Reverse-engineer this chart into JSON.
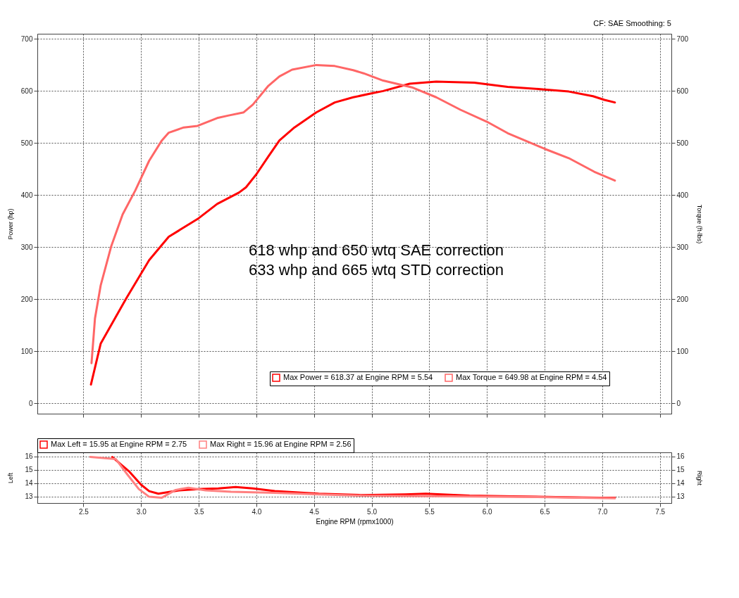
{
  "chart_data": [
    {
      "type": "line",
      "ylabel": "Power (hp)",
      "y2label": "Torque (ft-lbs)",
      "xlim": [
        2.1,
        7.6
      ],
      "ylim": [
        -20,
        710
      ],
      "y2lim": [
        -20,
        710
      ],
      "xticks": [
        2.5,
        3,
        3.5,
        4,
        4.5,
        5,
        5.5,
        6,
        6.5,
        7,
        7.5
      ],
      "yticks": [
        0,
        100,
        200,
        300,
        400,
        500,
        600,
        700
      ],
      "y2ticks": [
        0,
        100,
        200,
        300,
        400,
        500,
        600,
        700
      ],
      "tick_labels": "y",
      "grid": true,
      "legend": "bottom",
      "line_style": "solid",
      "annotations": [
        "CF: SAE Smoothing: 5",
        "618 whp and 650 wtq SAE correction",
        "633 whp and 665 wtq STD correction"
      ],
      "series": [
        {
          "name": "Max Power = 618.37 at Engine RPM = 5.54",
          "color": "#ff0000",
          "x": [
            2.565,
            2.65,
            2.87,
            3.07,
            3.24,
            3.49,
            3.66,
            3.85,
            3.91,
            4.0,
            4.1,
            4.2,
            4.33,
            4.52,
            4.68,
            4.84,
            4.99,
            5.1,
            5.33,
            5.56,
            5.89,
            6.18,
            6.5,
            6.71,
            6.92,
            7.02,
            7.11
          ],
          "values": [
            36,
            115,
            201,
            275,
            320,
            354,
            383,
            405,
            415,
            440,
            473,
            505,
            530,
            559,
            578,
            588,
            595,
            600,
            614,
            618,
            616,
            608,
            603,
            599,
            590,
            583,
            578
          ]
        },
        {
          "name": "Max Torque = 649.98 at Engine RPM = 4.54",
          "color": "#ff6666",
          "axis": "y2",
          "x": [
            2.57,
            2.6,
            2.65,
            2.74,
            2.84,
            2.95,
            3.07,
            3.18,
            3.24,
            3.37,
            3.49,
            3.66,
            3.76,
            3.89,
            3.97,
            4.1,
            4.2,
            4.31,
            4.52,
            4.68,
            4.84,
            4.93,
            5.1,
            5.35,
            5.56,
            5.77,
            6.0,
            6.18,
            6.5,
            6.71,
            6.93,
            7.11
          ],
          "values": [
            77,
            163,
            227,
            301,
            363,
            409,
            466,
            505,
            520,
            530,
            533,
            548,
            553,
            559,
            574,
            609,
            628,
            641,
            650,
            648,
            640,
            634,
            620,
            607,
            588,
            564,
            541,
            519,
            489,
            471,
            445,
            428
          ]
        }
      ]
    },
    {
      "type": "line",
      "xlabel": "Engine RPM (rpmx1000)",
      "ylabel": "Left",
      "y2label": "Right",
      "xlim": [
        2.1,
        7.6
      ],
      "ylim": [
        12.5,
        16.3
      ],
      "y2lim": [
        12.5,
        16.3
      ],
      "xticks": [
        2.5,
        {
          "value": 3,
          "label": "3.0"
        },
        3.5,
        {
          "value": 4,
          "label": "4.0"
        },
        4.5,
        {
          "value": 5,
          "label": "5.0"
        },
        5.5,
        {
          "value": 6,
          "label": "6.0"
        },
        6.5,
        {
          "value": 7,
          "label": "7.0"
        },
        7.5
      ],
      "yticks": [
        13,
        14,
        15,
        16
      ],
      "y2ticks": [
        13,
        14,
        15,
        16
      ],
      "grid": true,
      "legend": "top left",
      "line_style": "solid",
      "series": [
        {
          "name": "Max Left = 15.95 at Engine RPM = 2.75",
          "color": "#ff0000",
          "x": [
            2.75,
            2.9,
            3.0,
            3.07,
            3.15,
            3.33,
            3.52,
            3.67,
            3.82,
            3.97,
            4.16,
            4.54,
            4.91,
            5.29,
            5.47,
            5.85,
            6.22,
            6.6,
            6.98,
            7.11
          ],
          "values": [
            15.95,
            14.84,
            13.87,
            13.39,
            13.2,
            13.45,
            13.55,
            13.6,
            13.7,
            13.6,
            13.4,
            13.2,
            13.1,
            13.15,
            13.2,
            13.05,
            13.0,
            12.95,
            12.9,
            12.9
          ]
        },
        {
          "name": "Max Right = 15.96 at Engine RPM = 2.56",
          "color": "#ff8080",
          "axis": "y2",
          "x": [
            2.56,
            2.78,
            2.88,
            2.98,
            3.07,
            3.18,
            3.3,
            3.41,
            3.56,
            3.78,
            4.16,
            4.54,
            4.91,
            5.66,
            6.41,
            7.11
          ],
          "values": [
            15.96,
            15.8,
            14.65,
            13.55,
            12.97,
            12.9,
            13.48,
            13.65,
            13.45,
            13.35,
            13.27,
            13.15,
            13.05,
            13.0,
            12.95,
            12.85
          ]
        }
      ]
    }
  ]
}
